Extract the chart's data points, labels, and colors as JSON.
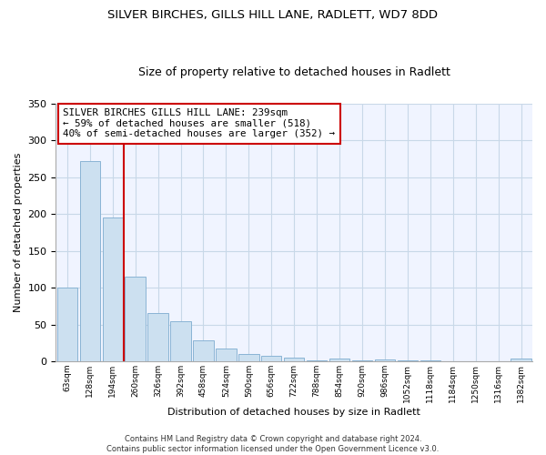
{
  "title": "SILVER BIRCHES, GILLS HILL LANE, RADLETT, WD7 8DD",
  "subtitle": "Size of property relative to detached houses in Radlett",
  "xlabel": "Distribution of detached houses by size in Radlett",
  "ylabel": "Number of detached properties",
  "bar_color": "#cce0f0",
  "bar_edge_color": "#8ab4d4",
  "vline_color": "#cc0000",
  "categories": [
    "63sqm",
    "128sqm",
    "194sqm",
    "260sqm",
    "326sqm",
    "392sqm",
    "458sqm",
    "524sqm",
    "590sqm",
    "656sqm",
    "722sqm",
    "788sqm",
    "854sqm",
    "920sqm",
    "986sqm",
    "1052sqm",
    "1118sqm",
    "1184sqm",
    "1250sqm",
    "1316sqm",
    "1382sqm"
  ],
  "values": [
    100,
    272,
    195,
    115,
    65,
    54,
    28,
    17,
    10,
    8,
    5,
    1,
    4,
    1,
    2,
    1,
    1,
    0,
    0,
    0,
    4
  ],
  "ylim": [
    0,
    350
  ],
  "yticks": [
    0,
    50,
    100,
    150,
    200,
    250,
    300,
    350
  ],
  "annotation_title": "SILVER BIRCHES GILLS HILL LANE: 239sqm",
  "annotation_line1": "← 59% of detached houses are smaller (518)",
  "annotation_line2": "40% of semi-detached houses are larger (352) →",
  "annotation_box_color": "#ffffff",
  "annotation_box_edge": "#cc0000",
  "footer_line1": "Contains HM Land Registry data © Crown copyright and database right 2024.",
  "footer_line2": "Contains public sector information licensed under the Open Government Licence v3.0.",
  "background_color": "#f0f4ff",
  "fig_background_color": "#ffffff",
  "grid_color": "#c8d8e8",
  "vline_x_index": 2.5
}
